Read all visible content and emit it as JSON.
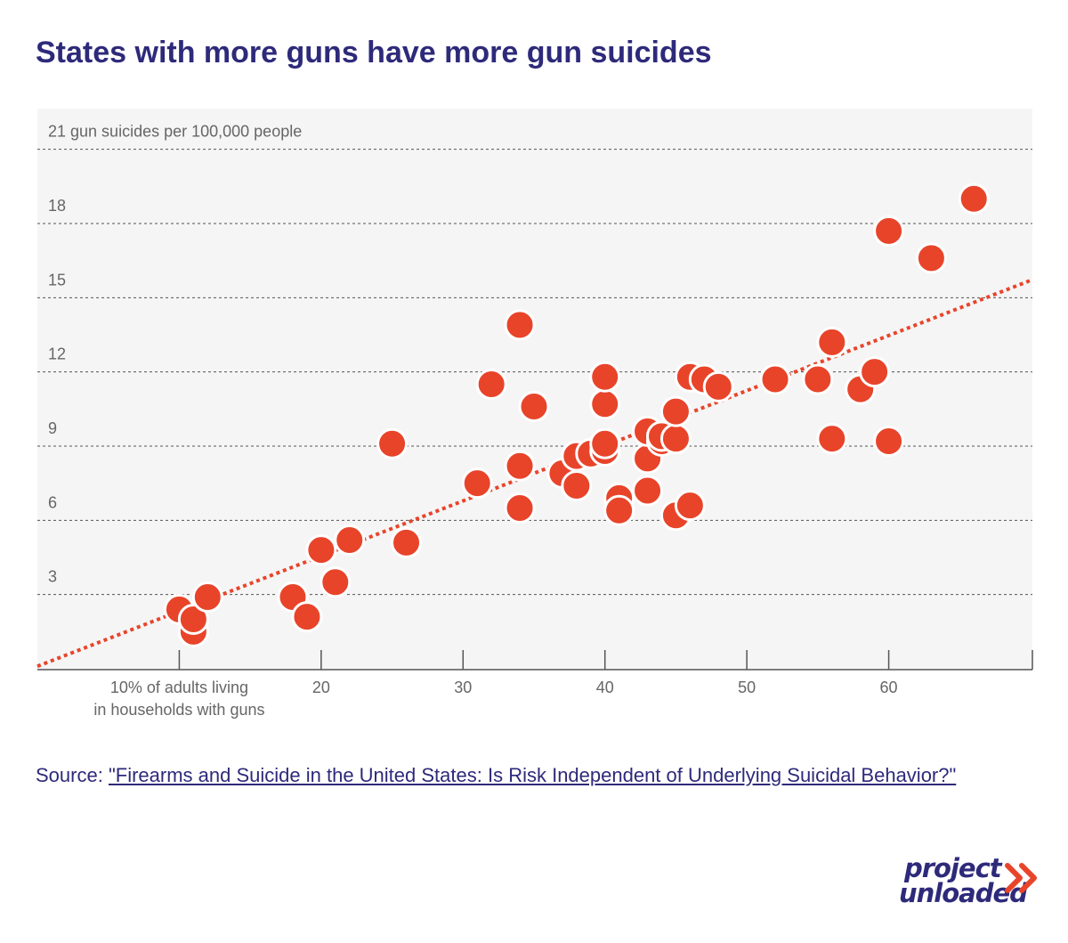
{
  "title": "States with more guns have more gun suicides",
  "source": {
    "label": "Source:",
    "link_text": "\"Firearms and Suicide in the United States: Is Risk Independent of Underlying Suicidal Behavior?\""
  },
  "logo": {
    "line1": "project",
    "line2": "unloaded",
    "accent_color": "#e8442a",
    "color": "#2e2a7a"
  },
  "colors": {
    "point": "#e8442a",
    "trend": "#e8442a",
    "plot_bg": "#f5f5f5",
    "gridline": "#555555",
    "title": "#2e2a7a"
  },
  "chart_data": {
    "type": "scatter",
    "title": "States with more guns have more gun suicides",
    "xlabel": "% of adults living in households with guns",
    "ylabel": "gun suicides per 100,000 people",
    "xlim": [
      0,
      70
    ],
    "ylim": [
      0,
      22.5
    ],
    "x_ticks": [
      {
        "value": 10,
        "label_lines": [
          "10% of adults living",
          "in households with guns"
        ]
      },
      {
        "value": 20,
        "label_lines": [
          "20"
        ]
      },
      {
        "value": 30,
        "label_lines": [
          "30"
        ]
      },
      {
        "value": 40,
        "label_lines": [
          "40"
        ]
      },
      {
        "value": 50,
        "label_lines": [
          "50"
        ]
      },
      {
        "value": 60,
        "label_lines": [
          "60"
        ]
      }
    ],
    "y_ticks": [
      {
        "value": 3,
        "label": "3"
      },
      {
        "value": 6,
        "label": "6"
      },
      {
        "value": 9,
        "label": "9"
      },
      {
        "value": 12,
        "label": "12"
      },
      {
        "value": 15,
        "label": "15"
      },
      {
        "value": 18,
        "label": "18"
      },
      {
        "value": 21,
        "label": "21 gun suicides per 100,000 people"
      }
    ],
    "grid": true,
    "trendline": {
      "x": [
        0,
        70
      ],
      "y": [
        0.1,
        15.7
      ]
    },
    "points": [
      {
        "x": 10,
        "y": 2.4
      },
      {
        "x": 11,
        "y": 1.5
      },
      {
        "x": 11,
        "y": 2.0
      },
      {
        "x": 12,
        "y": 2.9
      },
      {
        "x": 18,
        "y": 2.9
      },
      {
        "x": 19,
        "y": 2.1
      },
      {
        "x": 20,
        "y": 4.8
      },
      {
        "x": 21,
        "y": 3.5
      },
      {
        "x": 22,
        "y": 5.2
      },
      {
        "x": 25,
        "y": 9.1
      },
      {
        "x": 26,
        "y": 5.1
      },
      {
        "x": 31,
        "y": 7.5
      },
      {
        "x": 32,
        "y": 11.5
      },
      {
        "x": 34,
        "y": 8.2
      },
      {
        "x": 34,
        "y": 6.5
      },
      {
        "x": 34,
        "y": 13.9
      },
      {
        "x": 35,
        "y": 10.6
      },
      {
        "x": 37,
        "y": 7.9
      },
      {
        "x": 38,
        "y": 7.4
      },
      {
        "x": 38,
        "y": 8.6
      },
      {
        "x": 39,
        "y": 8.7
      },
      {
        "x": 40,
        "y": 8.8
      },
      {
        "x": 40,
        "y": 9.1
      },
      {
        "x": 40,
        "y": 10.7
      },
      {
        "x": 40,
        "y": 11.8
      },
      {
        "x": 41,
        "y": 6.9
      },
      {
        "x": 41,
        "y": 6.4
      },
      {
        "x": 43,
        "y": 7.2
      },
      {
        "x": 43,
        "y": 8.5
      },
      {
        "x": 43,
        "y": 9.6
      },
      {
        "x": 44,
        "y": 9.2
      },
      {
        "x": 44,
        "y": 9.4
      },
      {
        "x": 45,
        "y": 9.3
      },
      {
        "x": 45,
        "y": 10.4
      },
      {
        "x": 45,
        "y": 6.2
      },
      {
        "x": 46,
        "y": 6.6
      },
      {
        "x": 46,
        "y": 11.8
      },
      {
        "x": 47,
        "y": 11.7
      },
      {
        "x": 48,
        "y": 11.4
      },
      {
        "x": 52,
        "y": 11.7
      },
      {
        "x": 55,
        "y": 11.7
      },
      {
        "x": 56,
        "y": 9.3
      },
      {
        "x": 56,
        "y": 13.2
      },
      {
        "x": 58,
        "y": 11.3
      },
      {
        "x": 59,
        "y": 12.0
      },
      {
        "x": 60,
        "y": 9.2
      },
      {
        "x": 60,
        "y": 17.7
      },
      {
        "x": 63,
        "y": 16.6
      },
      {
        "x": 66,
        "y": 19.0
      }
    ]
  }
}
